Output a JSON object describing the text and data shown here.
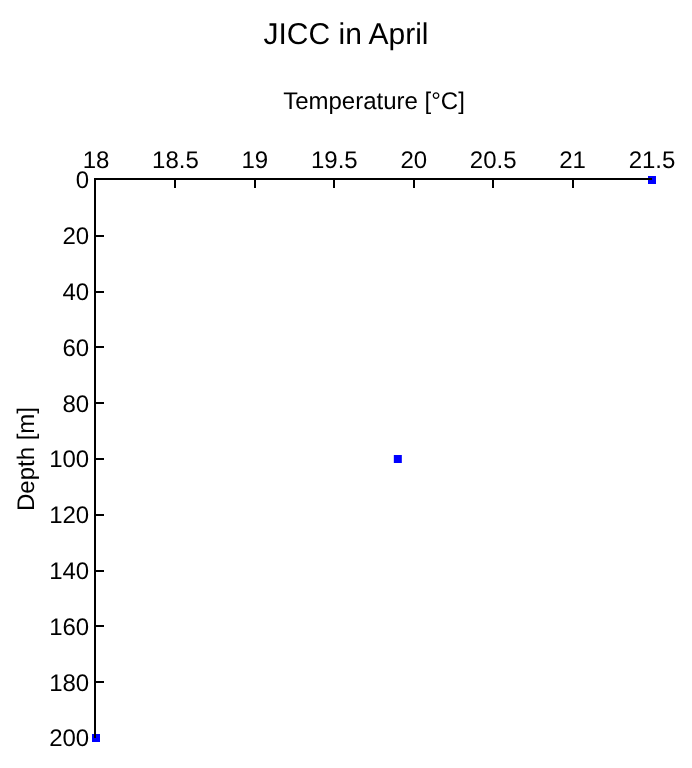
{
  "chart_data": {
    "type": "scatter",
    "title": "JICC in April",
    "xlabel": "Temperature [°C]",
    "ylabel": "Depth [m]",
    "x": [
      21.5,
      19.9,
      18
    ],
    "series": [
      {
        "color": "#0000ff",
        "values": [
          0,
          100,
          200
        ]
      }
    ],
    "xlim": [
      18,
      21.5
    ],
    "xticks": [
      18,
      18.5,
      19,
      19.5,
      20,
      20.5,
      21,
      21.5
    ],
    "ylim": [
      200,
      0
    ],
    "yticks": [
      0,
      20,
      40,
      60,
      80,
      100,
      120,
      140,
      160,
      180,
      200
    ],
    "marker": "square",
    "grid": false,
    "legend": false
  }
}
